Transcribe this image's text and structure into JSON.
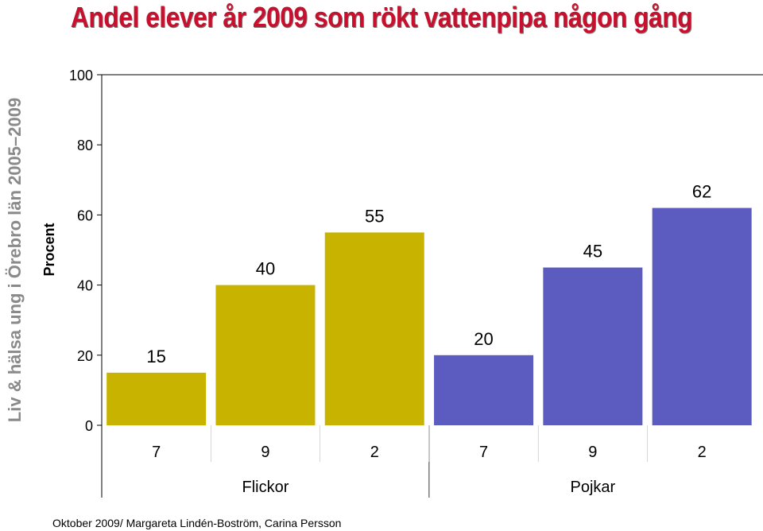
{
  "title": "Andel elever år 2009 som rökt vattenpipa någon gång",
  "side_label": "Liv & hälsa ung i Örebro län 2005–2009",
  "footer": "Oktober 2009/ Margareta Lindén-Boström, Carina Persson",
  "colors": {
    "title": "#c8102e",
    "flickor": "#c8b400",
    "pojkar": "#5b5bc0",
    "side_label": "#8a8a8a"
  },
  "chart_data": {
    "type": "bar",
    "ylabel": "Procent",
    "ylim": [
      0,
      100
    ],
    "yticks": [
      0,
      20,
      40,
      60,
      80,
      100
    ],
    "grid": false,
    "groups": [
      {
        "name": "Flickor",
        "categories": [
          "7",
          "9",
          "2"
        ],
        "values": [
          15,
          40,
          55
        ]
      },
      {
        "name": "Pojkar",
        "categories": [
          "7",
          "9",
          "2"
        ],
        "values": [
          20,
          45,
          62
        ]
      }
    ]
  }
}
